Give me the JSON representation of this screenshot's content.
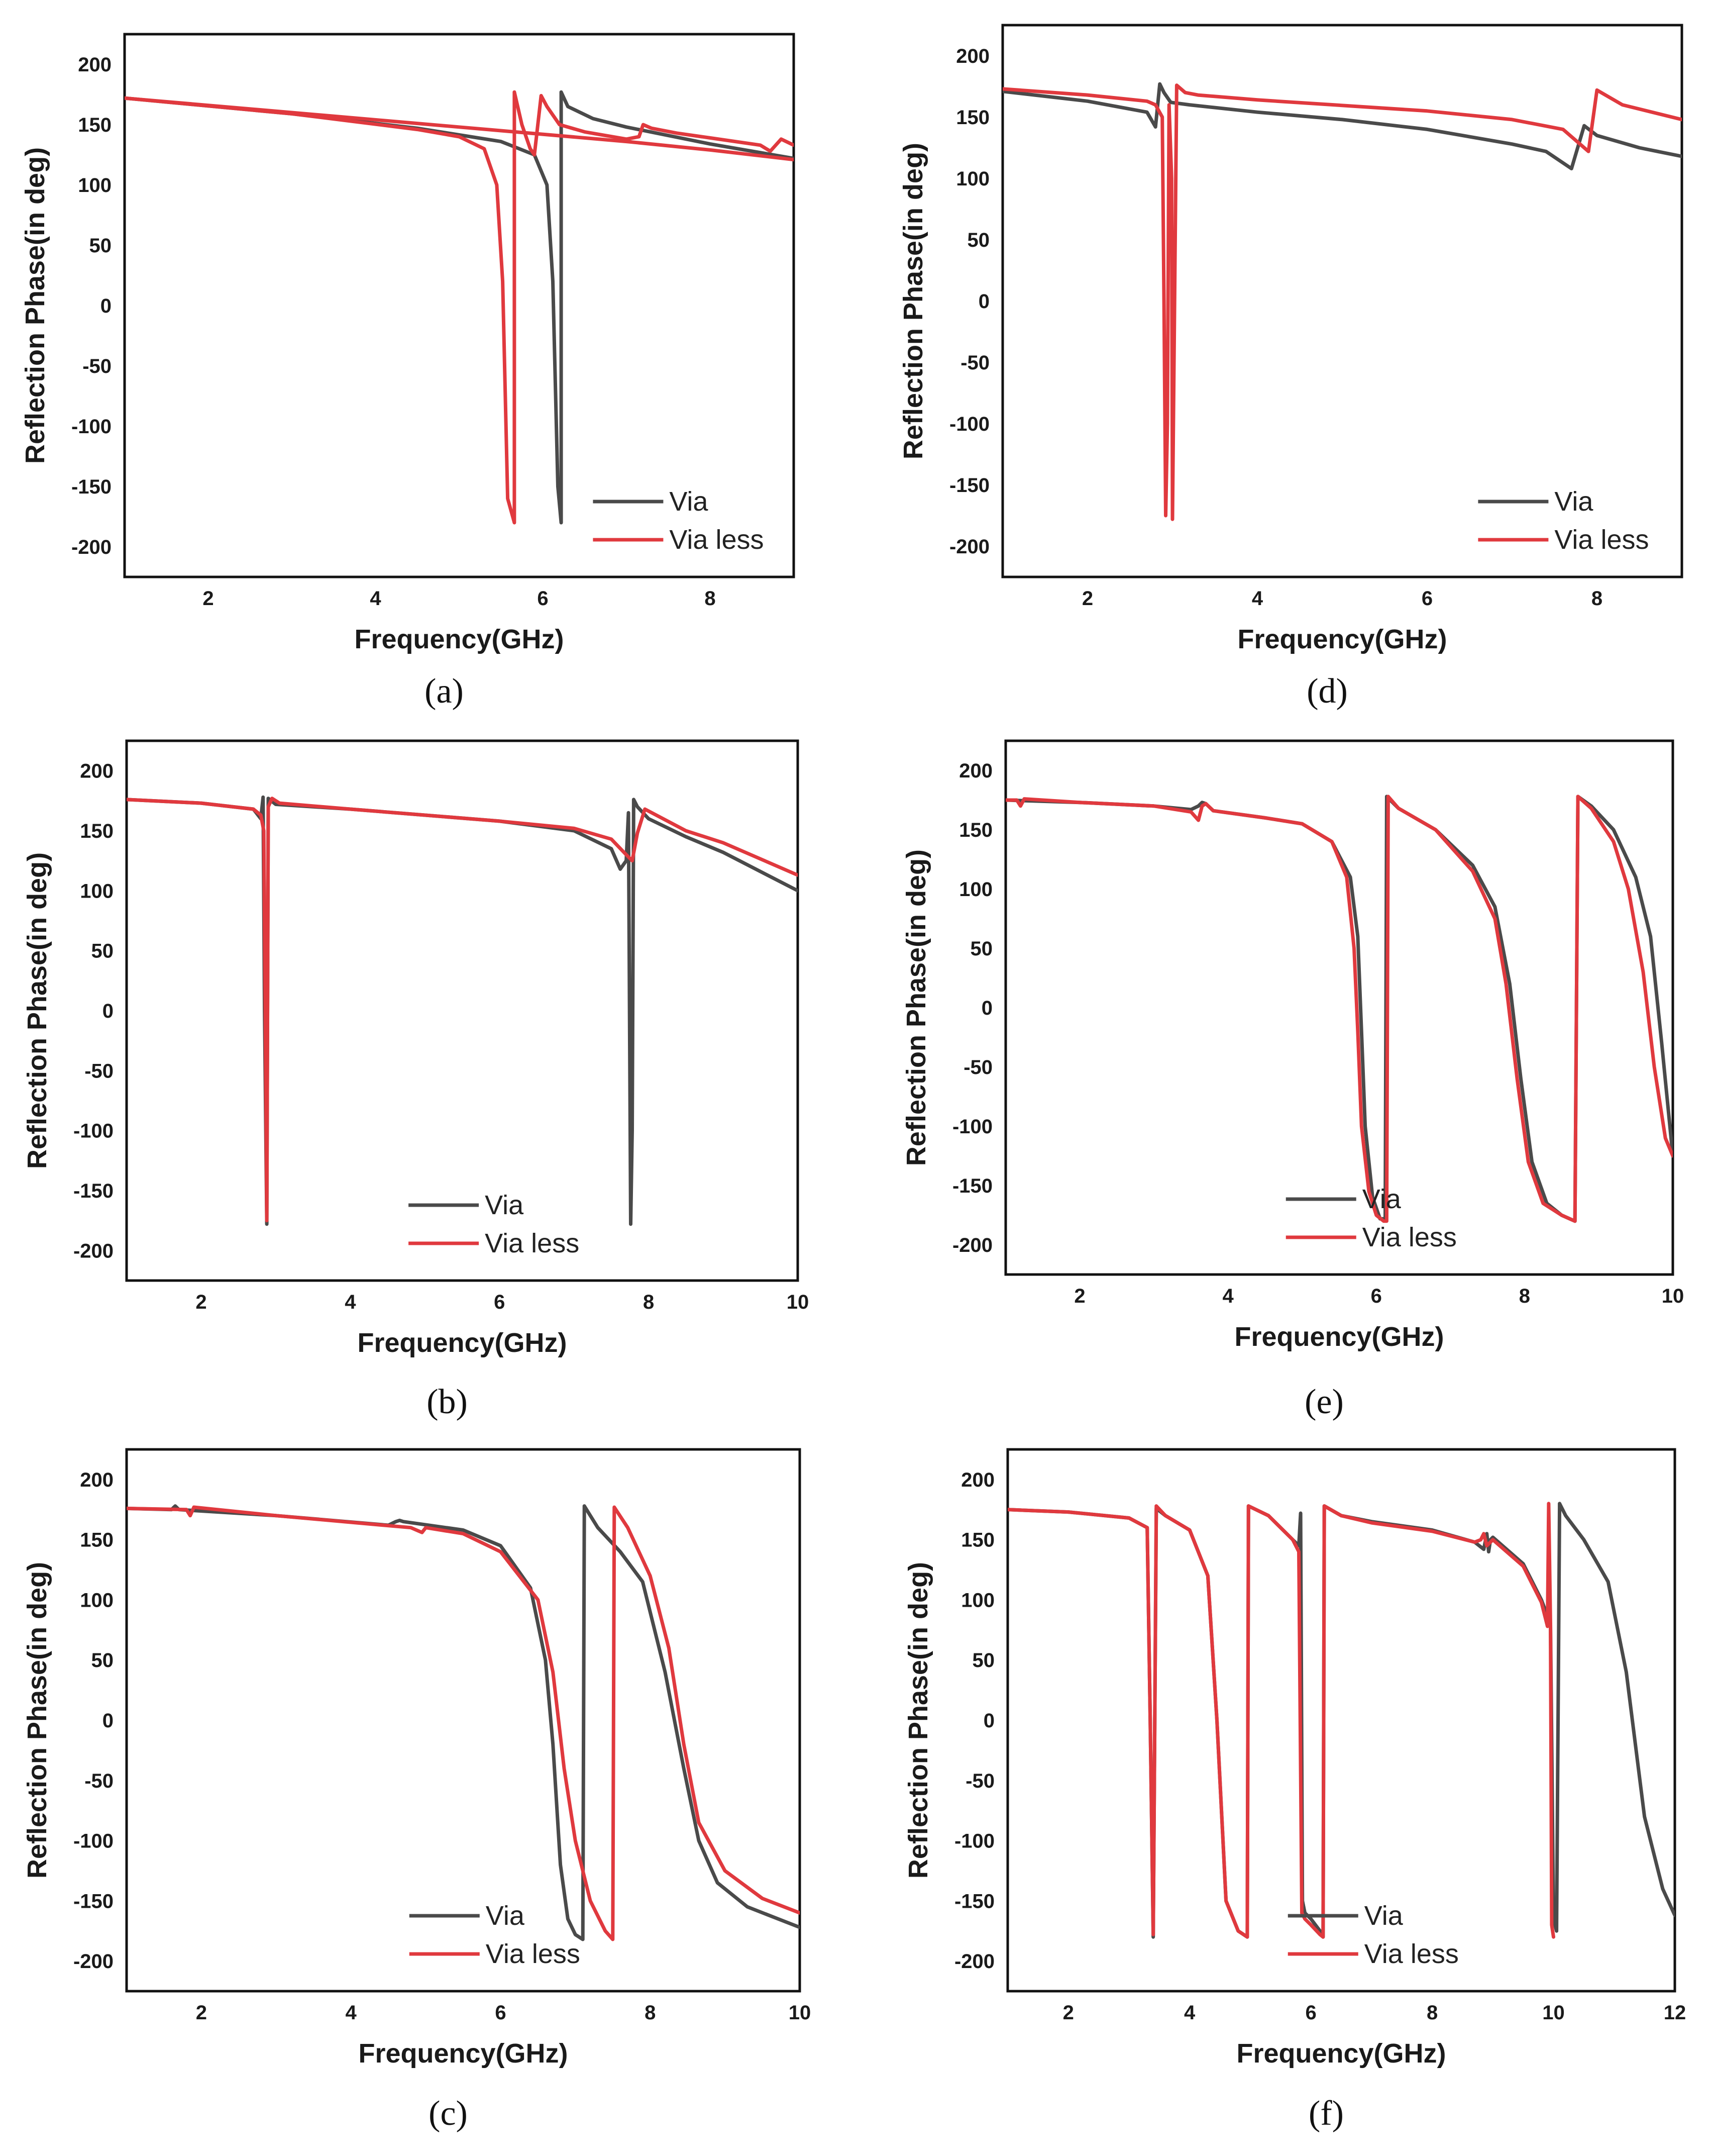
{
  "figure": {
    "colors": {
      "via": "#4a4a4a",
      "via_less": "#e0393e",
      "frame": "#111111",
      "background": "#ffffff"
    }
  },
  "chart_data": [
    {
      "id": "a",
      "caption": "(a)",
      "type": "line",
      "xlabel": "Frequency(GHz)",
      "ylabel": "Reflection Phase(in deg)",
      "xlim": [
        1,
        9
      ],
      "ylim": [
        -225,
        225
      ],
      "xticks": [
        2,
        4,
        6,
        8
      ],
      "yticks": [
        200,
        150,
        100,
        50,
        0,
        -50,
        -100,
        -150,
        -200
      ],
      "legend": {
        "position": "bottom-right",
        "entries": [
          "Via",
          "Via less"
        ]
      },
      "series": [
        {
          "name": "Via",
          "color": "#4a4a4a",
          "x": [
            1.0,
            3.0,
            4.5,
            5.5,
            5.9,
            6.05,
            6.12,
            6.18,
            6.22,
            6.22,
            6.3,
            6.6,
            7.0,
            8.0,
            9.0
          ],
          "y": [
            172,
            159,
            147,
            136,
            125,
            100,
            20,
            -150,
            -180,
            177,
            165,
            155,
            148,
            134,
            122
          ]
        },
        {
          "name": "Via less",
          "color": "#e0393e",
          "x": [
            1.0,
            3.0,
            4.5,
            5.0,
            5.3,
            5.45,
            5.52,
            5.58,
            5.64,
            5.66,
            5.66,
            5.75,
            5.85,
            5.9,
            5.98,
            6.05,
            6.2,
            6.5,
            7.0,
            7.15,
            7.2,
            7.3,
            7.6,
            8.0,
            8.6,
            8.72,
            8.85,
            9.0
          ],
          "y": [
            172,
            159,
            146,
            140,
            130,
            100,
            20,
            -160,
            -175,
            -180,
            177,
            150,
            130,
            125,
            174,
            165,
            150,
            144,
            138,
            140,
            150,
            147,
            143,
            139,
            133,
            128,
            138,
            133
          ]
        },
        {
          "name": "Via less",
          "color": "#e0393e",
          "x": [
            1.0,
            3.0,
            5.0,
            7.0,
            8.0,
            9.0
          ],
          "y": [
            172,
            160,
            148,
            136,
            129,
            121
          ]
        }
      ]
    },
    {
      "id": "d",
      "caption": "(d)",
      "type": "line",
      "xlabel": "Frequency(GHz)",
      "ylabel": "Reflection Phase(in deg)",
      "xlim": [
        1,
        9
      ],
      "ylim": [
        -225,
        225
      ],
      "xticks": [
        2,
        4,
        6,
        8
      ],
      "yticks": [
        200,
        150,
        100,
        50,
        0,
        -50,
        -100,
        -150,
        -200
      ],
      "legend": {
        "position": "bottom-right",
        "entries": [
          "Via",
          "Via less"
        ]
      },
      "series": [
        {
          "name": "Via",
          "color": "#4a4a4a",
          "x": [
            1.0,
            2.0,
            2.7,
            2.8,
            2.85,
            2.9,
            2.98,
            3.2,
            4.0,
            5.0,
            6.0,
            7.0,
            7.4,
            7.7,
            7.85,
            8.0,
            8.5,
            9.0
          ],
          "y": [
            171,
            163,
            154,
            142,
            177,
            170,
            162,
            160,
            154,
            148,
            140,
            128,
            122,
            108,
            143,
            135,
            125,
            118
          ]
        },
        {
          "name": "Via less",
          "color": "#e0393e",
          "x": [
            1.0,
            2.0,
            2.7,
            2.8,
            2.88,
            2.9,
            2.92,
            2.94,
            2.96,
            2.99,
            3.0,
            3.05,
            3.15,
            3.3,
            4.0,
            6.0,
            7.0,
            7.6,
            7.9,
            8.0,
            8.3,
            9.0
          ],
          "y": [
            173,
            168,
            163,
            160,
            150,
            0,
            -175,
            -100,
            160,
            100,
            -178,
            176,
            170,
            168,
            164,
            155,
            148,
            140,
            122,
            172,
            160,
            148
          ]
        }
      ]
    },
    {
      "id": "b",
      "caption": "(b)",
      "type": "line",
      "xlabel": "Frequency(GHz)",
      "ylabel": "Reflection Phase(in deg)",
      "xlim": [
        1,
        10
      ],
      "ylim": [
        -225,
        225
      ],
      "xticks": [
        2,
        4,
        6,
        8,
        10
      ],
      "yticks": [
        200,
        150,
        100,
        50,
        0,
        -50,
        -100,
        -150,
        -200
      ],
      "legend": {
        "position": "bottom-center",
        "entries": [
          "Via",
          "Via less"
        ]
      },
      "series": [
        {
          "name": "Via",
          "color": "#4a4a4a",
          "x": [
            1.0,
            2.0,
            2.7,
            2.8,
            2.83,
            2.85,
            2.88,
            2.9,
            3.0,
            4.0,
            6.0,
            7.0,
            7.5,
            7.62,
            7.7,
            7.73,
            7.76,
            7.78,
            7.8,
            7.85,
            8.0,
            8.5,
            9.0,
            10.0
          ],
          "y": [
            176,
            173,
            168,
            160,
            178,
            0,
            -178,
            177,
            172,
            168,
            158,
            150,
            135,
            118,
            125,
            165,
            -178,
            -100,
            176,
            170,
            160,
            145,
            132,
            100
          ]
        },
        {
          "name": "Via less",
          "color": "#e0393e",
          "x": [
            1.0,
            2.0,
            2.7,
            2.8,
            2.84,
            2.86,
            2.88,
            2.9,
            2.95,
            3.05,
            4.0,
            6.0,
            7.0,
            7.5,
            7.7,
            7.78,
            7.85,
            7.95,
            8.5,
            9.0,
            10.0
          ],
          "y": [
            176,
            173,
            168,
            163,
            150,
            0,
            -175,
            170,
            177,
            173,
            168,
            158,
            152,
            143,
            130,
            125,
            148,
            168,
            150,
            140,
            113
          ]
        }
      ]
    },
    {
      "id": "e",
      "caption": "(e)",
      "type": "line",
      "xlabel": "Frequency(GHz)",
      "ylabel": "Reflection Phase(in deg)",
      "xlim": [
        1,
        10
      ],
      "ylim": [
        -225,
        225
      ],
      "xticks": [
        2,
        4,
        6,
        8,
        10
      ],
      "yticks": [
        200,
        150,
        100,
        50,
        0,
        -50,
        -100,
        -150,
        -200
      ],
      "legend": {
        "position": "bottom-center",
        "entries": [
          "Via",
          "Via less"
        ]
      },
      "series": [
        {
          "name": "Via",
          "color": "#4a4a4a",
          "x": [
            1.0,
            2.0,
            3.0,
            3.5,
            3.6,
            3.65,
            3.7,
            3.8,
            4.5,
            5.0,
            5.4,
            5.65,
            5.75,
            5.8,
            5.85,
            5.95,
            6.05,
            6.12,
            6.14,
            6.3,
            6.8,
            7.3,
            7.6,
            7.8,
            7.95,
            8.1,
            8.3,
            8.5,
            8.68,
            8.72,
            8.9,
            9.2,
            9.5,
            9.7,
            9.85,
            10.0
          ],
          "y": [
            175,
            173,
            170,
            167,
            170,
            173,
            172,
            166,
            160,
            155,
            140,
            110,
            60,
            -20,
            -100,
            -160,
            -178,
            -178,
            178,
            168,
            150,
            120,
            85,
            20,
            -60,
            -130,
            -165,
            -175,
            -180,
            178,
            170,
            150,
            110,
            60,
            -30,
            -125
          ]
        },
        {
          "name": "Via less",
          "color": "#e0393e",
          "x": [
            1.0,
            1.15,
            1.2,
            1.25,
            2.0,
            3.0,
            3.5,
            3.6,
            3.65,
            3.7,
            3.8,
            4.5,
            5.0,
            5.4,
            5.6,
            5.7,
            5.75,
            5.8,
            5.9,
            6.0,
            6.1,
            6.14,
            6.16,
            6.3,
            6.8,
            7.3,
            7.6,
            7.75,
            7.9,
            8.05,
            8.25,
            8.5,
            8.68,
            8.72,
            8.9,
            9.2,
            9.4,
            9.6,
            9.75,
            9.9,
            10.0
          ],
          "y": [
            175,
            175,
            170,
            176,
            173,
            170,
            165,
            158,
            170,
            172,
            166,
            160,
            155,
            140,
            110,
            50,
            -20,
            -100,
            -155,
            -175,
            -180,
            -180,
            178,
            168,
            150,
            115,
            75,
            20,
            -60,
            -130,
            -165,
            -175,
            -180,
            178,
            168,
            140,
            100,
            30,
            -50,
            -110,
            -125
          ]
        }
      ]
    },
    {
      "id": "c",
      "caption": "(c)",
      "type": "line",
      "xlabel": "Frequency(GHz)",
      "ylabel": "Reflection Phase(in deg)",
      "xlim": [
        1,
        10
      ],
      "ylim": [
        -225,
        225
      ],
      "xticks": [
        2,
        4,
        6,
        8,
        10
      ],
      "yticks": [
        200,
        150,
        100,
        50,
        0,
        -50,
        -100,
        -150,
        -200
      ],
      "legend": {
        "position": "bottom-center",
        "entries": [
          "Via",
          "Via less"
        ]
      },
      "series": [
        {
          "name": "Via",
          "color": "#4a4a4a",
          "x": [
            1.0,
            1.6,
            1.65,
            1.7,
            3.0,
            4.5,
            4.6,
            4.65,
            4.7,
            5.5,
            6.0,
            6.4,
            6.6,
            6.7,
            6.8,
            6.9,
            7.0,
            7.1,
            7.12,
            7.3,
            7.6,
            7.9,
            8.2,
            8.45,
            8.65,
            8.9,
            9.3,
            10.0
          ],
          "y": [
            176,
            175,
            178,
            175,
            170,
            162,
            165,
            166,
            165,
            158,
            145,
            110,
            50,
            -20,
            -120,
            -165,
            -178,
            -182,
            178,
            160,
            140,
            115,
            40,
            -40,
            -100,
            -135,
            -155,
            -172
          ]
        },
        {
          "name": "Via less",
          "color": "#e0393e",
          "x": [
            1.0,
            1.8,
            1.85,
            1.9,
            3.0,
            4.8,
            4.95,
            5.0,
            5.5,
            6.0,
            6.5,
            6.7,
            6.85,
            7.0,
            7.2,
            7.4,
            7.5,
            7.52,
            7.7,
            8.0,
            8.25,
            8.45,
            8.65,
            9.0,
            9.5,
            10.0
          ],
          "y": [
            176,
            175,
            170,
            177,
            170,
            160,
            156,
            160,
            155,
            140,
            100,
            40,
            -40,
            -100,
            -150,
            -175,
            -182,
            177,
            160,
            120,
            60,
            -20,
            -85,
            -125,
            -148,
            -160
          ]
        }
      ]
    },
    {
      "id": "f",
      "caption": "(f)",
      "type": "line",
      "xlabel": "Frequency(GHz)",
      "ylabel": "Reflection Phase(in deg)",
      "xlim": [
        1,
        12
      ],
      "ylim": [
        -225,
        225
      ],
      "xticks": [
        2,
        4,
        6,
        8,
        10,
        12
      ],
      "yticks": [
        200,
        150,
        100,
        50,
        0,
        -50,
        -100,
        -150,
        -200
      ],
      "legend": {
        "position": "bottom-center",
        "entries": [
          "Via",
          "Via less"
        ]
      },
      "series": [
        {
          "name": "Via",
          "color": "#4a4a4a",
          "x": [
            1.0,
            2.0,
            3.0,
            3.3,
            3.35,
            3.4,
            3.45,
            3.6,
            4.0,
            4.3,
            4.45,
            4.6,
            4.8,
            4.95,
            4.97,
            5.3,
            5.7,
            5.8,
            5.83,
            5.86,
            5.9,
            6.0,
            6.15,
            6.2,
            6.22,
            6.5,
            7.0,
            8.0,
            8.7,
            8.85,
            8.9,
            8.93,
            8.96,
            9.0,
            9.5,
            9.8,
            9.95,
            10.0,
            10.05,
            10.1,
            10.15,
            10.2,
            10.5,
            10.9,
            11.2,
            11.5,
            11.8,
            12.0
          ],
          "y": [
            175,
            173,
            168,
            160,
            0,
            -180,
            176,
            170,
            158,
            120,
            0,
            -150,
            -175,
            -180,
            178,
            170,
            150,
            145,
            172,
            -150,
            -160,
            -165,
            -175,
            -180,
            178,
            170,
            165,
            158,
            148,
            142,
            155,
            140,
            150,
            152,
            130,
            100,
            80,
            -165,
            -175,
            180,
            175,
            170,
            150,
            115,
            40,
            -80,
            -140,
            -162
          ]
        },
        {
          "name": "Via less",
          "color": "#e0393e",
          "x": [
            1.0,
            2.0,
            3.0,
            3.3,
            3.35,
            3.4,
            3.45,
            3.6,
            4.0,
            4.3,
            4.45,
            4.6,
            4.8,
            4.95,
            4.97,
            5.3,
            5.7,
            5.8,
            5.85,
            5.9,
            6.0,
            6.15,
            6.2,
            6.22,
            6.5,
            7.0,
            8.0,
            8.7,
            8.8,
            8.85,
            8.9,
            9.0,
            9.5,
            9.8,
            9.9,
            9.92,
            9.95,
            9.97,
            10.0
          ],
          "y": [
            175,
            173,
            168,
            160,
            0,
            -178,
            178,
            170,
            158,
            120,
            0,
            -150,
            -175,
            -180,
            178,
            170,
            150,
            140,
            -160,
            -165,
            -170,
            -178,
            -180,
            178,
            170,
            164,
            157,
            148,
            150,
            155,
            145,
            150,
            128,
            98,
            78,
            180,
            80,
            -170,
            -180
          ]
        }
      ]
    }
  ]
}
